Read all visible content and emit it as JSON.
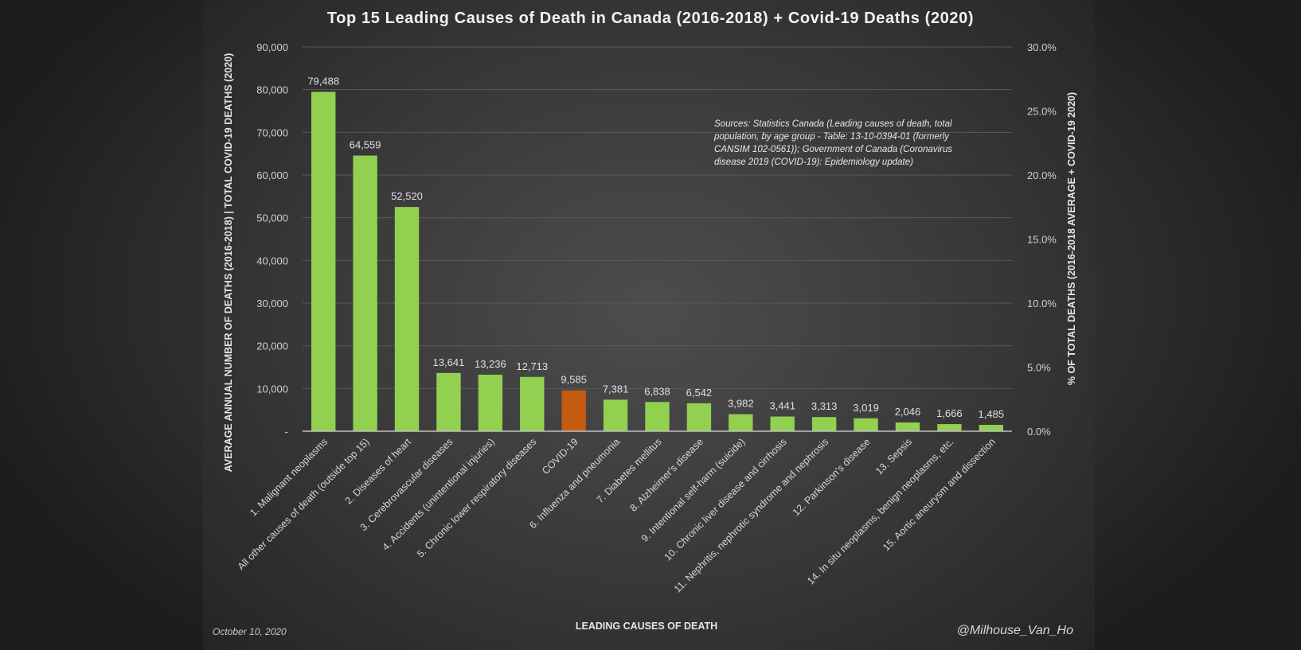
{
  "chart_data": {
    "type": "bar",
    "title": "Top 15 Leading Causes of Death in Canada (2016-2018) + Covid-19 Deaths (2020)",
    "xlabel": "LEADING CAUSES OF DEATH",
    "ylabel": "AVERAGE ANNUAL NUMBER OF DEATHS (2016-2018) | TOTAL COVID-19 DEATHS (2020)",
    "y2label": "% OF TOTAL DEATHS (2016-2018 AVERAGE + COVID-19 2020)",
    "ylim": [
      0,
      90000
    ],
    "y2lim": [
      0,
      30
    ],
    "yticks": [
      "-",
      "10,000",
      "20,000",
      "30,000",
      "40,000",
      "50,000",
      "60,000",
      "70,000",
      "80,000",
      "90,000"
    ],
    "y2ticks": [
      "0.0%",
      "5.0%",
      "10.0%",
      "15.0%",
      "20.0%",
      "25.0%",
      "30.0%"
    ],
    "grid": true,
    "categories": [
      "1. Malignant neoplasms",
      "All other causes of death (outside top 15)",
      "2. Diseases of heart",
      "3. Cerebrovascular diseases",
      "4. Accidents (unintentional injuries)",
      "5. Chronic lower respiratory diseases",
      "COVID-19",
      "6. Influenza and pneumonia",
      "7. Diabetes mellitus",
      "8. Alzheimer's disease",
      "9. Intentional self-harm (suicide)",
      "10. Chronic liver disease and cirrhosis",
      "11. Nephritis, nephrotic syndrome and nephrosis",
      "12. Parkinson's disease",
      "13. Sepsis",
      "14. In situ neoplasms, benign neoplasms, etc.",
      "15. Aortic aneurysm and dissection"
    ],
    "values": [
      79488,
      64559,
      52520,
      13641,
      13236,
      12713,
      9585,
      7381,
      6838,
      6542,
      3982,
      3441,
      3313,
      3019,
      2046,
      1666,
      1485
    ],
    "value_labels": [
      "79,488",
      "64,559",
      "52,520",
      "13,641",
      "13,236",
      "12,713",
      "9,585",
      "7,381",
      "6,838",
      "6,542",
      "3,982",
      "3,441",
      "3,313",
      "3,019",
      "2,046",
      "1,666",
      "1,485"
    ],
    "highlight_index": 6,
    "colors": {
      "bar": "#92d050",
      "highlight": "#c55a11",
      "background": "#3c3c3c",
      "grid": "#595959"
    },
    "annotation": "Sources: Statistics Canada (Leading causes of death, total population, by age group - Table: 13-10-0394-01 (formerly CANSIM 102-0561)); Government of Canada (Coronavirus disease 2019 (COVID-19): Epidemiology update)"
  },
  "footer": {
    "date": "October 10, 2020",
    "handle": "@Milhouse_Van_Ho"
  }
}
